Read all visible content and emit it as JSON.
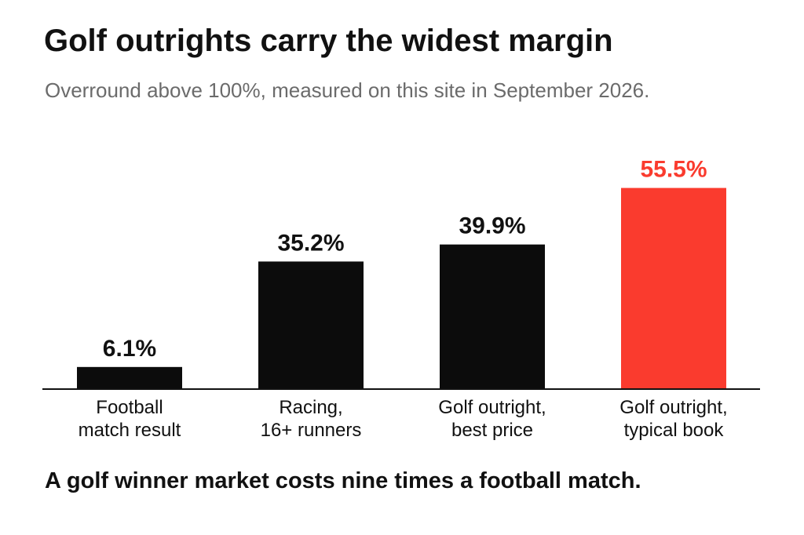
{
  "chart_data": {
    "type": "bar",
    "title": "Golf outrights carry the widest margin",
    "subtitle": "Overround above 100%, measured on this site in September 2026.",
    "categories": [
      [
        "Football",
        "match result"
      ],
      [
        "Racing,",
        "16+ runners"
      ],
      [
        "Golf outright,",
        "best price"
      ],
      [
        "Golf outright,",
        "typical book"
      ]
    ],
    "values": [
      6.1,
      35.2,
      39.9,
      55.5
    ],
    "value_labels": [
      "6.1%",
      "35.2%",
      "39.9%",
      "55.5%"
    ],
    "highlight_index": 3,
    "ylim": [
      0,
      60
    ],
    "grid": false,
    "colors": {
      "bar": "#0c0c0c",
      "highlight": "#fa3b2e",
      "axis": "#111111"
    }
  },
  "takeaway": "A golf winner market costs nine times a football match."
}
